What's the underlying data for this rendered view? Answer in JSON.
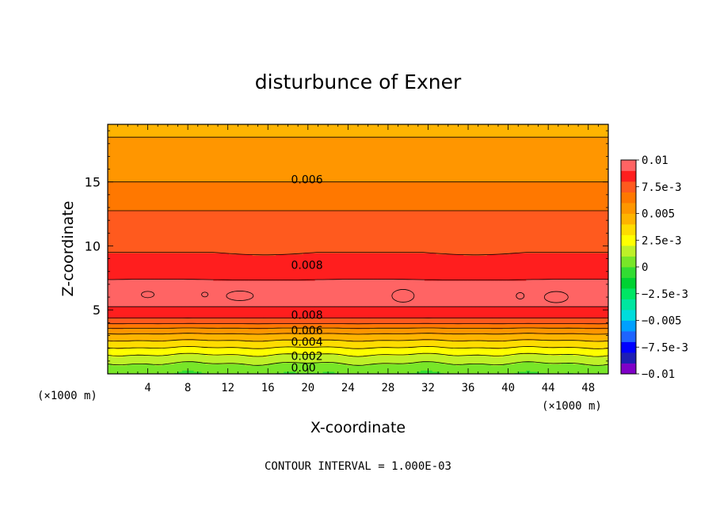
{
  "chart_data": {
    "type": "contour",
    "title": "disturbunce of Exner",
    "xlabel": "X-coordinate",
    "ylabel": "Z-coordinate",
    "x_unit": "(×1000 m)",
    "z_unit": "(×1000 m)",
    "xlim": [
      0,
      50
    ],
    "ylim": [
      0,
      19.5
    ],
    "x_ticks": [
      "4",
      "8",
      "12",
      "16",
      "20",
      "24",
      "28",
      "32",
      "36",
      "40",
      "44",
      "48"
    ],
    "y_ticks": [
      "5",
      "10",
      "15"
    ],
    "footer": "CONTOUR INTERVAL = 1.000E-03",
    "contour_interval": 0.001,
    "contour_labels": [
      {
        "text": "0.006",
        "x": 18,
        "z": 15.2
      },
      {
        "text": "0.008",
        "x": 18,
        "z": 8.5
      },
      {
        "text": "0.008",
        "x": 18,
        "z": 4.6
      },
      {
        "text": "0.006",
        "x": 18,
        "z": 3.4
      },
      {
        "text": "0.004",
        "x": 18,
        "z": 2.5
      },
      {
        "text": "0.002",
        "x": 18,
        "z": 1.4
      },
      {
        "text": "0.00",
        "x": 18,
        "z": 0.5
      }
    ],
    "vertical_profile": {
      "z": [
        0,
        0.5,
        1,
        1.5,
        2,
        2.5,
        3,
        3.5,
        4,
        4.5,
        5,
        6,
        7,
        8,
        9,
        10,
        11,
        12,
        13,
        14,
        15,
        16,
        17,
        18,
        19,
        19.5
      ],
      "value": [
        0.0,
        0.0005,
        0.0013,
        0.002,
        0.0029,
        0.0038,
        0.0047,
        0.0058,
        0.0072,
        0.0083,
        0.0089,
        0.0093,
        0.0094,
        0.0083,
        0.0081,
        0.0079,
        0.0077,
        0.0073,
        0.0069,
        0.0064,
        0.006,
        0.0057,
        0.0054,
        0.0051,
        0.0049,
        0.0048
      ]
    },
    "local_maxima_gt_0_010": [
      {
        "x": 4,
        "z": 6.2
      },
      {
        "x": 9.7,
        "z": 6.2
      },
      {
        "x": 13.2,
        "z": 6.1
      },
      {
        "x": 29.5,
        "z": 6.1
      },
      {
        "x": 41.2,
        "z": 6.1
      },
      {
        "x": 44.8,
        "z": 6.0
      }
    ],
    "colorbar": {
      "labels": [
        "0.01",
        "7.5e-3",
        "0.005",
        "2.5e-3",
        "0",
        "−2.5e-3",
        "−0.005",
        "−7.5e-3",
        "−0.01"
      ],
      "values": [
        0.01,
        0.0075,
        0.005,
        0.0025,
        0,
        -0.0025,
        -0.005,
        -0.0075,
        -0.01
      ],
      "range": [
        -0.01,
        0.01
      ],
      "colors": [
        "#7f00c8",
        "#1e1eb4",
        "#0000ff",
        "#1e64ff",
        "#00a0ff",
        "#00dcdc",
        "#00e6a0",
        "#00e664",
        "#00d232",
        "#32dc32",
        "#78e628",
        "#bef028",
        "#ffff00",
        "#ffdc00",
        "#ffb400",
        "#ff9600",
        "#ff7800",
        "#ff5a1e",
        "#ff1e1e",
        "#ff6464"
      ]
    }
  }
}
